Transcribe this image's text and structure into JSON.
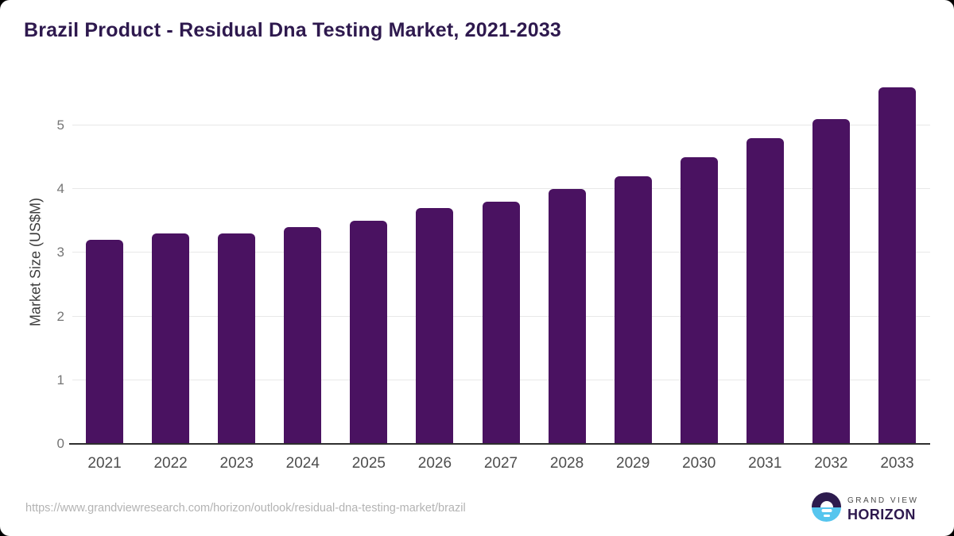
{
  "header": {
    "title": "Brazil Product - Residual Dna Testing Market, 2021-2033"
  },
  "chart_data": {
    "type": "bar",
    "title": "Brazil Product - Residual Dna Testing Market, 2021-2033",
    "categories": [
      "2021",
      "2022",
      "2023",
      "2024",
      "2025",
      "2026",
      "2027",
      "2028",
      "2029",
      "2030",
      "2031",
      "2032",
      "2033"
    ],
    "values": [
      3.2,
      3.3,
      3.3,
      3.4,
      3.5,
      3.7,
      3.8,
      4.0,
      4.2,
      4.5,
      4.8,
      5.1,
      5.6
    ],
    "xlabel": "",
    "ylabel": "Market Size (US$M)",
    "ylim": [
      0,
      5.72
    ],
    "yticks": [
      0,
      1,
      2,
      3,
      4,
      5
    ],
    "grid": true,
    "legend": false,
    "bar_color": "#4a1261",
    "gridline_color": "#e8e8e8",
    "axis_line_color": "#2e2e2e"
  },
  "footer": {
    "source_url": "https://www.grandviewresearch.com/horizon/outlook/residual-dna-testing-market/brazil",
    "logo": {
      "line1": "GRAND VIEW",
      "line2": "HORIZON"
    }
  },
  "brand_colors": {
    "title_purple": "#2e194e",
    "logo_dark": "#2d1b4e",
    "logo_blue": "#56c5ee"
  }
}
